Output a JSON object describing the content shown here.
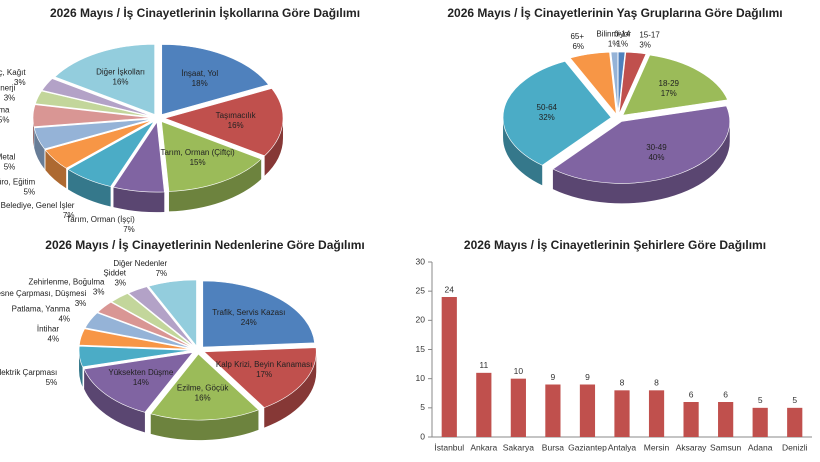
{
  "chart_data": [
    {
      "type": "pie",
      "title": "2026 Mayıs / İş Cinayetlerinin İşkollarına Göre Dağılımı",
      "categories": [
        "İnşaat, Yol",
        "Taşımacılık",
        "Tarım, Orman (Çiftçi)",
        "Tarım, Orman (İşçi)",
        "Belediye, Genel İşler",
        "Ticaret, Büro, Eğitim",
        "Metal",
        "Konaklama",
        "Enerji",
        "Ağaç, Kağıt",
        "Diğer İşkolları"
      ],
      "values": [
        18,
        16,
        15,
        7,
        7,
        5,
        5,
        5,
        3,
        3,
        16
      ],
      "value_labels": [
        "18%",
        "16%",
        "15%",
        "7%",
        "7%",
        "5%",
        "5%",
        "5%",
        "3%",
        "3%",
        "16%"
      ],
      "colors": [
        "#4f81bd",
        "#c0504d",
        "#9bbb59",
        "#8064a2",
        "#4bacc6",
        "#f79646",
        "#95b3d7",
        "#d99694",
        "#c3d69b",
        "#b3a2c7",
        "#93cddd"
      ]
    },
    {
      "type": "pie",
      "title": "2026 Mayıs / İş Cinayetlerinin Yaş Gruplarına Göre Dağılımı",
      "categories": [
        "0-14",
        "15-17",
        "18-29",
        "30-49",
        "50-64",
        "65+",
        "Bilinmiyor"
      ],
      "values": [
        1,
        3,
        17,
        40,
        32,
        6,
        1
      ],
      "value_labels": [
        "1%",
        "3%",
        "17%",
        "40%",
        "32%",
        "6%",
        "1%"
      ],
      "colors": [
        "#4f81bd",
        "#c0504d",
        "#9bbb59",
        "#8064a2",
        "#4bacc6",
        "#f79646",
        "#95b3d7"
      ]
    },
    {
      "type": "pie",
      "title": "2026 Mayıs / İş Cinayetlerinin Nedenlerine Göre Dağılımı",
      "categories": [
        "Trafik, Servis Kazası",
        "Kalp Krizi, Beyin Kanaması",
        "Ezilme, Göçük",
        "Yüksekten Düşme",
        "Elektrik Çarpması",
        "İntihar",
        "Patlama, Yanma",
        "Nesne Çarpması, Düşmesi",
        "Zehirlenme, Boğulma",
        "Şiddet",
        "Diğer Nedenler"
      ],
      "values": [
        24,
        17,
        16,
        14,
        5,
        4,
        4,
        3,
        3,
        3,
        7
      ],
      "value_labels": [
        "24%",
        "17%",
        "16%",
        "14%",
        "5%",
        "4%",
        "4%",
        "3%",
        "3%",
        "3%",
        "7%"
      ],
      "colors": [
        "#4f81bd",
        "#c0504d",
        "#9bbb59",
        "#8064a2",
        "#4bacc6",
        "#f79646",
        "#95b3d7",
        "#d99694",
        "#c3d69b",
        "#b3a2c7",
        "#93cddd"
      ]
    },
    {
      "type": "bar",
      "title": "2026 Mayıs / İş Cinayetlerinin Şehirlere Göre Dağılımı",
      "categories": [
        "İstanbul",
        "Ankara",
        "Sakarya",
        "Bursa",
        "Gaziantep",
        "Antalya",
        "Mersin",
        "Aksaray",
        "Samsun",
        "Adana",
        "Denizli"
      ],
      "values": [
        24,
        11,
        10,
        9,
        9,
        8,
        8,
        6,
        6,
        5,
        5
      ],
      "color": "#c0504d",
      "ylim": [
        0,
        30
      ],
      "yticks": [
        0,
        5,
        10,
        15,
        20,
        25,
        30
      ]
    }
  ]
}
